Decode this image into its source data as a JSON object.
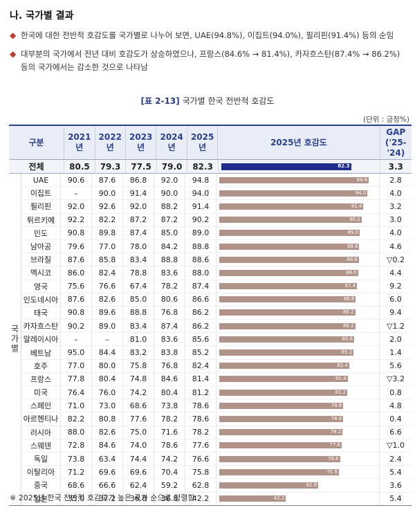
{
  "section": {
    "heading": "나. 국가별 결과"
  },
  "bullets": [
    {
      "line1": "한국에 대한 전반적 호감도를 국가별로 나누어 보면, UAE(94.8%), 이집트(94.0%), 필리핀(91.4%) 등의 순임",
      "line2": ""
    },
    {
      "line1": "대부분의 국가에서 전년 대비 호감도가 상승하였으나, 프랑스(84.6% → 81.4%), 카자흐스탄(87.4% → 86.2%)",
      "line2": "등의 국가에서는 감소한 것으로 나타남"
    }
  ],
  "table": {
    "title_bracket": "[표 2-13]",
    "title": "국가별 한국 전반적 호감도",
    "unit": "(단위 : 긍정%)",
    "headers": {
      "label": "구분",
      "years": [
        "2021년",
        "2022년",
        "2023년",
        "2024년",
        "2025년"
      ],
      "bar": "2025년 호감도",
      "gap": "GAP\n('25-'24)"
    },
    "group_label": "국가별",
    "total": {
      "name": "전체",
      "v2021": "80.5",
      "v2022": "79.3",
      "v2023": "77.5",
      "v2024": "79.0",
      "v2025": "82.3",
      "bar_value": 82.3,
      "gap": "3.3"
    },
    "rows": [
      {
        "name": "UAE",
        "v2021": "90.6",
        "v2022": "87.6",
        "v2023": "86.8",
        "v2024": "92.0",
        "v2025": "94.8",
        "bar_value": 94.8,
        "gap": "2.8"
      },
      {
        "name": "이집트",
        "v2021": "–",
        "v2022": "90.0",
        "v2023": "91.4",
        "v2024": "90.0",
        "v2025": "94.0",
        "bar_value": 94.0,
        "gap": "4.0"
      },
      {
        "name": "필리핀",
        "v2021": "92.0",
        "v2022": "92.6",
        "v2023": "92.0",
        "v2024": "88.2",
        "v2025": "91.4",
        "bar_value": 91.4,
        "gap": "3.2"
      },
      {
        "name": "튀르키예",
        "v2021": "92.2",
        "v2022": "82.2",
        "v2023": "87.2",
        "v2024": "87.2",
        "v2025": "90.2",
        "bar_value": 90.2,
        "gap": "3.0"
      },
      {
        "name": "인도",
        "v2021": "90.8",
        "v2022": "89.8",
        "v2023": "87.4",
        "v2024": "85.0",
        "v2025": "89.0",
        "bar_value": 89.0,
        "gap": "4.0"
      },
      {
        "name": "남아공",
        "v2021": "79.6",
        "v2022": "77.0",
        "v2023": "78.0",
        "v2024": "84.2",
        "v2025": "88.8",
        "bar_value": 88.8,
        "gap": "4.6"
      },
      {
        "name": "브라질",
        "v2021": "87.6",
        "v2022": "85.8",
        "v2023": "83.4",
        "v2024": "88.8",
        "v2025": "88.6",
        "bar_value": 88.6,
        "gap": "▽0.2"
      },
      {
        "name": "멕시코",
        "v2021": "86.0",
        "v2022": "82.4",
        "v2023": "78.8",
        "v2024": "83.6",
        "v2025": "88.0",
        "bar_value": 88.0,
        "gap": "4.4"
      },
      {
        "name": "영국",
        "v2021": "75.6",
        "v2022": "76.6",
        "v2023": "67.4",
        "v2024": "78.2",
        "v2025": "87.4",
        "bar_value": 87.4,
        "gap": "9.2"
      },
      {
        "name": "인도네시아",
        "v2021": "87.6",
        "v2022": "82.6",
        "v2023": "85.0",
        "v2024": "80.6",
        "v2025": "86.6",
        "bar_value": 86.6,
        "gap": "6.0"
      },
      {
        "name": "태국",
        "v2021": "90.8",
        "v2022": "89.6",
        "v2023": "88.8",
        "v2024": "76.8",
        "v2025": "86.2",
        "bar_value": 86.2,
        "gap": "9.4"
      },
      {
        "name": "카자흐스탄",
        "v2021": "90.2",
        "v2022": "89.0",
        "v2023": "83.4",
        "v2024": "87.4",
        "v2025": "86.2",
        "bar_value": 86.2,
        "gap": "▽1.2"
      },
      {
        "name": "말레이시아",
        "v2021": "–",
        "v2022": "–",
        "v2023": "81.0",
        "v2024": "83.6",
        "v2025": "85.6",
        "bar_value": 85.6,
        "gap": "2.0"
      },
      {
        "name": "베트남",
        "v2021": "95.0",
        "v2022": "84.4",
        "v2023": "83.2",
        "v2024": "83.8",
        "v2025": "85.2",
        "bar_value": 85.2,
        "gap": "1.4"
      },
      {
        "name": "호주",
        "v2021": "77.0",
        "v2022": "80.0",
        "v2023": "75.8",
        "v2024": "76.8",
        "v2025": "82.4",
        "bar_value": 82.4,
        "gap": "5.6"
      },
      {
        "name": "프랑스",
        "v2021": "77.8",
        "v2022": "80.4",
        "v2023": "74.8",
        "v2024": "84.6",
        "v2025": "81.4",
        "bar_value": 81.4,
        "gap": "▽3.2"
      },
      {
        "name": "미국",
        "v2021": "76.4",
        "v2022": "76.0",
        "v2023": "74.2",
        "v2024": "80.4",
        "v2025": "81.2",
        "bar_value": 81.2,
        "gap": "0.8"
      },
      {
        "name": "스페인",
        "v2021": "71.0",
        "v2022": "73.0",
        "v2023": "68.6",
        "v2024": "73.8",
        "v2025": "78.6",
        "bar_value": 78.6,
        "gap": "4.8"
      },
      {
        "name": "아르헨티나",
        "v2021": "82.2",
        "v2022": "80.8",
        "v2023": "77.6",
        "v2024": "78.2",
        "v2025": "78.6",
        "bar_value": 78.6,
        "gap": "0.4"
      },
      {
        "name": "러시아",
        "v2021": "88.0",
        "v2022": "82.6",
        "v2023": "75.0",
        "v2024": "71.6",
        "v2025": "78.2",
        "bar_value": 78.2,
        "gap": "6.6"
      },
      {
        "name": "스웨덴",
        "v2021": "72.8",
        "v2022": "84.6",
        "v2023": "74.0",
        "v2024": "78.6",
        "v2025": "77.6",
        "bar_value": 77.6,
        "gap": "▽1.0"
      },
      {
        "name": "독일",
        "v2021": "73.8",
        "v2022": "63.4",
        "v2023": "74.4",
        "v2024": "74.2",
        "v2025": "76.6",
        "bar_value": 76.6,
        "gap": "2.4"
      },
      {
        "name": "이탈리아",
        "v2021": "71.2",
        "v2022": "69.6",
        "v2023": "69.6",
        "v2024": "70.4",
        "v2025": "75.8",
        "bar_value": 75.8,
        "gap": "5.4"
      },
      {
        "name": "중국",
        "v2021": "68.6",
        "v2022": "66.6",
        "v2023": "62.4",
        "v2024": "59.2",
        "v2025": "62.8",
        "bar_value": 62.8,
        "gap": "3.6"
      },
      {
        "name": "일본",
        "v2021": "35.0",
        "v2022": "37.2",
        "v2023": "36.8",
        "v2024": "36.8",
        "v2025": "42.2",
        "bar_value": 42.2,
        "gap": "5.4"
      }
    ],
    "bar_max": 100,
    "colors": {
      "total_bar": "#1f2c8c",
      "row_bar": "#b09288",
      "header": "#2a3f8f"
    }
  },
  "footnote": "※ 2025년 한국 전반적 호감도가 높은 국가 순으로 정렬함"
}
